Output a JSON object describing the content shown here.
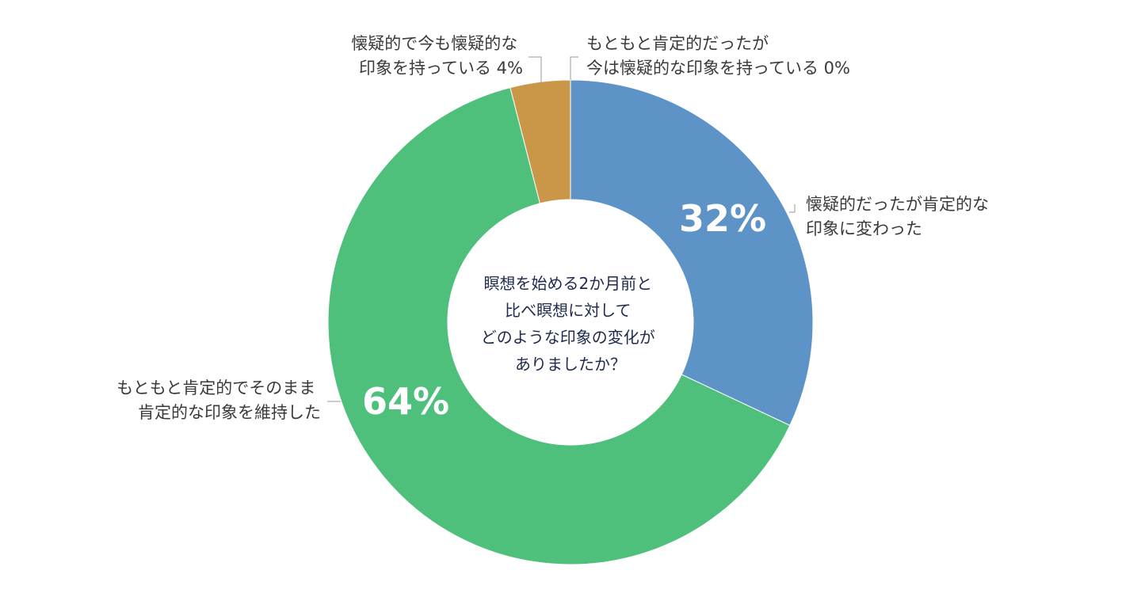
{
  "chart_data": {
    "type": "pie",
    "donut": true,
    "center_text": [
      "瞑想を始める2か月前と",
      "比べ瞑想に対して",
      "どのような印象の変化が",
      "ありましたか？"
    ],
    "slices": [
      {
        "key": "skeptic_to_positive",
        "label_lines": [
          "懐疑的だったが肯定的な",
          "印象に変わった"
        ],
        "value": 32,
        "pct_text": "32%",
        "color": "#5e93c7"
      },
      {
        "key": "positive_stayed",
        "label_lines": [
          "もともと肯定的でそのまま",
          "肯定的な印象を維持した"
        ],
        "value": 64,
        "pct_text": "64%",
        "color": "#4fc07b"
      },
      {
        "key": "skeptic_stayed",
        "label_lines": [
          "懐疑的で今も懐疑的な",
          "印象を持っている  4%"
        ],
        "value": 4,
        "pct_text": "",
        "color": "#c99747"
      },
      {
        "key": "positive_to_skeptic",
        "label_lines": [
          "もともと肯定的だったが",
          "今は懐疑的な印象を持っている  0%"
        ],
        "value": 0,
        "pct_text": "",
        "color": "#5e93c7"
      }
    ]
  }
}
